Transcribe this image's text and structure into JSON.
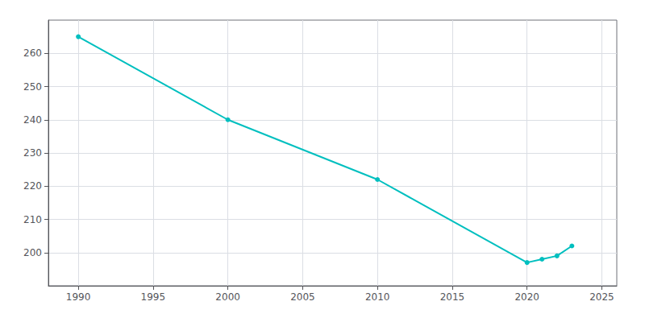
{
  "chart_data": {
    "type": "line",
    "x": [
      1990,
      2000,
      2010,
      2020,
      2021,
      2022,
      2023
    ],
    "values": [
      265,
      240,
      222,
      197,
      198,
      199,
      202
    ],
    "color": "#00BFBF",
    "marker": "circle",
    "xlim": [
      1988,
      2026
    ],
    "xticks": [
      1990,
      1995,
      2000,
      2005,
      2010,
      2015,
      2020,
      2025
    ],
    "ylim": [
      190,
      270
    ],
    "yticks": [
      200,
      210,
      220,
      230,
      240,
      250,
      260
    ],
    "grid": true
  }
}
